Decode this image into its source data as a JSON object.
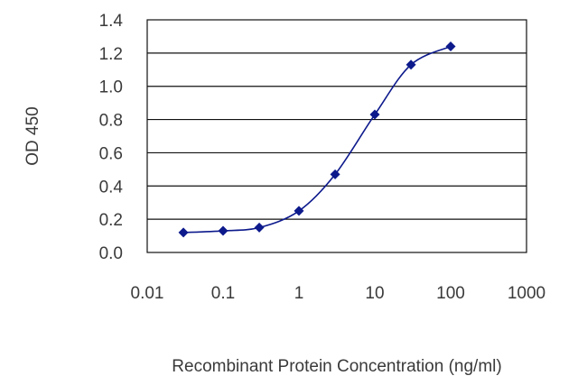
{
  "chart_data": {
    "type": "scatter",
    "title": "",
    "xlabel": "Recombinant Protein Concentration (ng/ml)",
    "ylabel": "OD 450",
    "x_scale": "log",
    "xlim": [
      0.01,
      1000
    ],
    "ylim": [
      0.0,
      1.4
    ],
    "x_ticks": [
      0.01,
      0.1,
      1,
      10,
      100,
      1000
    ],
    "x_tick_labels": [
      "0.01",
      "0.1",
      "1",
      "10",
      "100",
      "1000"
    ],
    "y_ticks": [
      0.0,
      0.2,
      0.4,
      0.6,
      0.8,
      1.0,
      1.2,
      1.4
    ],
    "y_tick_labels": [
      "0.0",
      "0.2",
      "0.4",
      "0.6",
      "0.8",
      "1.0",
      "1.2",
      "1.4"
    ],
    "grid": "horizontal",
    "legend": "none",
    "series": [
      {
        "x": [
          0.03,
          0.1,
          0.3,
          1,
          3,
          10,
          30,
          100
        ],
        "y": [
          0.12,
          0.13,
          0.15,
          0.25,
          0.47,
          0.83,
          1.13,
          1.24
        ],
        "marker": "diamond",
        "fitted_curve": true
      }
    ],
    "colors": {
      "series": "#0d1a8c",
      "grid": "#111111",
      "axis": "#111111",
      "text": "#3a3a3a"
    }
  }
}
